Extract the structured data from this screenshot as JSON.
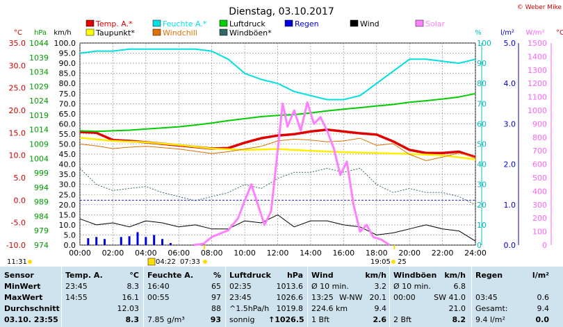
{
  "title": "Dienstag, 03.10.2017",
  "credit": "© Weber Mike",
  "legend": [
    {
      "label": "Temp. A.*",
      "color": "#e00000"
    },
    {
      "label": "Feuchte A.*",
      "color": "#00e0e0"
    },
    {
      "label": "Luftdruck",
      "color": "#00cc00"
    },
    {
      "label": "Regen",
      "color": "#0000dd"
    },
    {
      "label": "Wind",
      "color": "#000000"
    },
    {
      "label": "Solar",
      "color": "#ff80ff"
    },
    {
      "label": "Taupunkt*",
      "color": "#ffff00"
    },
    {
      "label": "Windchill",
      "color": "#e07000"
    },
    {
      "label": "Windböen*",
      "color": "#336666"
    }
  ],
  "axis_units": {
    "temp": "°C",
    "pressure": "hPa",
    "wind": "km/h",
    "humidity": "%",
    "rain": "l/m²",
    "solar": "W/m²"
  },
  "sun_times": {
    "sunrise_rel": "04:22",
    "sunrise": "07:33",
    "sunset": "19:05",
    "sunset_rel": "25"
  },
  "now_label": "11:31",
  "chart_data": {
    "type": "line",
    "x_unit": "hour",
    "x_range": [
      0,
      24
    ],
    "x_ticks": [
      "00:00",
      "02:00",
      "04:00",
      "06:00",
      "08:00",
      "10:00",
      "12:00",
      "14:00",
      "16:00",
      "18:00",
      "20:00",
      "22:00",
      "24:00"
    ],
    "axes": {
      "temp": {
        "min": -10,
        "max": 35,
        "ticks": [
          "35.0",
          "30.0",
          "25.0",
          "20.0",
          "15.0",
          "10.0",
          "5.0",
          "0.0",
          "-5.0",
          "-10.0"
        ]
      },
      "pressure": {
        "min": 974,
        "max": 1044,
        "ticks": [
          "1044",
          "1039",
          "1034",
          "1029",
          "1024",
          "1019",
          "1014",
          "1009",
          "1004",
          "999",
          "994",
          "989",
          "984",
          "979",
          "974"
        ]
      },
      "wind": {
        "min": 0,
        "max": 100,
        "ticks": [
          "100.0",
          "95.0",
          "90.0",
          "85.0",
          "80.0",
          "75.0",
          "70.0",
          "65.0",
          "60.0",
          "55.0",
          "50.0",
          "45.0",
          "40.0",
          "35.0",
          "30.0",
          "25.0",
          "20.0",
          "15.0",
          "10.0",
          "5.0",
          "0.0"
        ]
      },
      "humidity": {
        "min": 0,
        "max": 100,
        "ticks": [
          "100",
          "90",
          "80",
          "70",
          "60",
          "50",
          "40",
          "30",
          "20",
          "10",
          "0"
        ]
      },
      "rain": {
        "min": 0,
        "max": 5,
        "ticks": [
          "5.0",
          "4.0",
          "3.0",
          "2.0",
          "1.0",
          "0.0"
        ]
      },
      "solar": {
        "min": 0,
        "max": 1500,
        "ticks": [
          "1500",
          "1400",
          "1300",
          "1200",
          "1100",
          "1000",
          "900",
          "800",
          "700",
          "600",
          "500",
          "400",
          "300",
          "200",
          "100",
          "0"
        ]
      }
    },
    "series": [
      {
        "name": "Temp. A.*",
        "axis": "temp",
        "x": [
          0,
          1,
          2,
          3,
          4,
          6,
          8,
          9,
          10,
          11,
          12,
          13,
          14,
          15,
          16,
          17,
          18,
          19,
          20,
          21,
          22,
          23,
          24
        ],
        "y": [
          15.2,
          15.0,
          13.4,
          13.2,
          12.9,
          12.2,
          11.5,
          11.6,
          12.8,
          13.8,
          14.4,
          14.7,
          15.3,
          15.7,
          15.3,
          14.9,
          14.6,
          13.1,
          11.2,
          10.5,
          10.5,
          10.8,
          9.6
        ]
      },
      {
        "name": "Feuchte A.*",
        "axis": "humidity",
        "x": [
          0,
          1,
          2,
          3,
          4,
          6,
          7,
          8,
          9,
          10,
          11,
          12,
          13,
          14,
          15,
          16,
          17,
          18,
          19,
          20,
          21,
          22,
          23,
          24
        ],
        "y": [
          95,
          96,
          96,
          97,
          97,
          97,
          97,
          96,
          92,
          85,
          82,
          80,
          76,
          74,
          72,
          72,
          74,
          80,
          86,
          92,
          92,
          91,
          90,
          92
        ]
      },
      {
        "name": "Luftdruck",
        "axis": "pressure",
        "x": [
          0,
          1,
          2,
          3,
          4,
          5,
          6,
          7,
          8,
          9,
          10,
          11,
          12,
          13,
          14,
          15,
          16,
          17,
          18,
          19,
          20,
          21,
          22,
          23,
          24
        ],
        "y": [
          1013.6,
          1013.4,
          1013.6,
          1013.8,
          1014.2,
          1014.6,
          1015.0,
          1015.6,
          1016.3,
          1017.1,
          1017.8,
          1018.5,
          1018.9,
          1019.2,
          1019.8,
          1020.5,
          1021.1,
          1021.6,
          1022.2,
          1022.7,
          1023.5,
          1024.0,
          1024.6,
          1025.3,
          1026.5
        ]
      },
      {
        "name": "Taupunkt*",
        "axis": "temp",
        "x": [
          0,
          2,
          4,
          6,
          8,
          10,
          12,
          14,
          16,
          18,
          20,
          22,
          24
        ],
        "y": [
          13.9,
          13.2,
          12.9,
          12.3,
          11.5,
          11.2,
          11.4,
          11.0,
          10.7,
          10.5,
          10.3,
          10.0,
          9.1
        ]
      },
      {
        "name": "Windchill",
        "axis": "temp",
        "x": [
          0,
          1,
          2,
          3,
          4,
          6,
          8,
          9,
          10,
          11,
          12,
          13,
          14,
          15,
          16,
          17,
          18,
          19,
          20,
          21,
          22,
          23,
          24
        ],
        "y": [
          12.5,
          12.1,
          11.5,
          11.8,
          12.0,
          11.4,
          10.4,
          10.8,
          11.4,
          12.0,
          13.2,
          13.6,
          13.4,
          13.0,
          13.2,
          13.8,
          12.2,
          12.6,
          10.2,
          8.8,
          9.6,
          10.5,
          9.5
        ]
      },
      {
        "name": "Wind",
        "axis": "wind",
        "x": [
          0,
          1,
          2,
          3,
          4,
          5,
          6,
          7,
          8,
          9,
          10,
          11,
          12,
          13,
          14,
          15,
          16,
          17,
          18,
          19,
          20,
          21,
          22,
          23,
          24
        ],
        "y": [
          13,
          10,
          11,
          9,
          12,
          11,
          9,
          10,
          8,
          8,
          12,
          11,
          15,
          9,
          12,
          12,
          10,
          9,
          5,
          6,
          8,
          10,
          8,
          7,
          2
        ]
      },
      {
        "name": "Windböen*",
        "axis": "wind",
        "x": [
          0,
          1,
          2,
          3,
          4,
          5,
          6,
          7,
          8,
          9,
          10,
          11,
          12,
          13,
          14,
          15,
          16,
          17,
          18,
          19,
          20,
          21,
          22,
          23,
          24
        ],
        "y": [
          38,
          30,
          27,
          28,
          29,
          26,
          24,
          22,
          24,
          26,
          30,
          28,
          33,
          36,
          36,
          38,
          36,
          38,
          30,
          26,
          28,
          26,
          26,
          24,
          20
        ]
      },
      {
        "name": "Solar",
        "axis": "solar",
        "x": [
          6.9,
          7.5,
          8,
          9,
          9.6,
          10,
          10.4,
          10.8,
          11.2,
          11.6,
          12,
          12.3,
          12.6,
          13,
          13.4,
          13.8,
          14.2,
          14.6,
          15,
          15.4,
          15.8,
          16.2,
          16.6,
          17,
          17.4,
          17.8,
          18.3,
          18.8
        ],
        "y": [
          0,
          10,
          60,
          110,
          200,
          330,
          450,
          300,
          150,
          250,
          700,
          1050,
          880,
          1000,
          850,
          1060,
          900,
          950,
          850,
          720,
          520,
          620,
          300,
          100,
          150,
          60,
          40,
          0
        ]
      },
      {
        "name": "Regen",
        "axis": "rain",
        "x": [
          0.5,
          1,
          1.5,
          2.5,
          3,
          3.5,
          4,
          4.5,
          5,
          5.5
        ],
        "y": [
          0.17,
          0.2,
          0.15,
          0.2,
          0.22,
          0.32,
          0.2,
          0.25,
          0.15,
          0.05
        ]
      }
    ]
  },
  "table": {
    "headers": {
      "sensor": "Sensor",
      "temp": "Temp. A.",
      "temp_unit": "°C",
      "hum": "Feuchte A.",
      "hum_unit": "%",
      "press": "Luftdruck",
      "press_unit": "hPa",
      "wind": "Wind",
      "wind_unit": "km/h",
      "gust": "Windböen",
      "gust_unit": "km/h",
      "rain": "Regen",
      "rain_unit": "l/m²"
    },
    "rows": [
      {
        "label": "MinWert",
        "c1": "23:45",
        "c2": "8.3",
        "c3": "16:40",
        "c4": "65",
        "c5": "02:35",
        "c6": "1013.6",
        "c7": "Ø 10 min.",
        "c8": "",
        "c9": "3.2",
        "c10": "Ø 10 min.",
        "c11": "6.8",
        "c12": "",
        "c13": ""
      },
      {
        "label": "MaxWert",
        "c1": "14:55",
        "c2": "16.1",
        "c3": "00:55",
        "c4": "97",
        "c5": "23:45",
        "c6": "1026.6",
        "c7": "13:25",
        "c8": "W-NW",
        "c9": "20.1",
        "c10": "00:00",
        "c11": "SW 41.0",
        "c12": "03:45",
        "c13": "0.6"
      },
      {
        "label": "Durchschnitt",
        "c1": "",
        "c2": "12.03",
        "c3": "",
        "c4": "88",
        "c5": "^1.5hPa/h",
        "c6": "1019.8",
        "c7": "224.6 km",
        "c8": "",
        "c9": "9.4",
        "c10": "",
        "c11": "21.0",
        "c12": "Gesamt:",
        "c13": "9.4"
      },
      {
        "label": "03.10. 23:55",
        "c1": "",
        "c2": "8.3",
        "c3": "7.85 g/m³",
        "c4": "93",
        "c5": "sonnig",
        "c6": "↑1026.5",
        "c7": "1 Bft",
        "c8": "",
        "c9": "2.6",
        "c10": "2 Bft",
        "c11": "8.2",
        "c12": "9.4 l/m²",
        "c13": "0.0"
      }
    ]
  }
}
